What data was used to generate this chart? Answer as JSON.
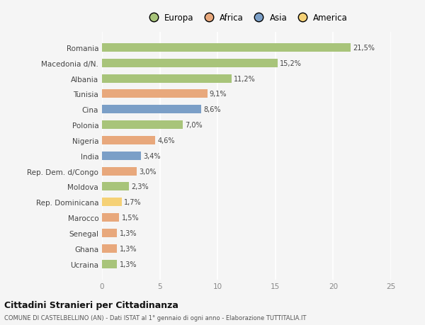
{
  "categories": [
    "Romania",
    "Macedonia d/N.",
    "Albania",
    "Tunisia",
    "Cina",
    "Polonia",
    "Nigeria",
    "India",
    "Rep. Dem. d/Congo",
    "Moldova",
    "Rep. Dominicana",
    "Marocco",
    "Senegal",
    "Ghana",
    "Ucraina"
  ],
  "values": [
    21.5,
    15.2,
    11.2,
    9.1,
    8.6,
    7.0,
    4.6,
    3.4,
    3.0,
    2.3,
    1.7,
    1.5,
    1.3,
    1.3,
    1.3
  ],
  "labels": [
    "21,5%",
    "15,2%",
    "11,2%",
    "9,1%",
    "8,6%",
    "7,0%",
    "4,6%",
    "3,4%",
    "3,0%",
    "2,3%",
    "1,7%",
    "1,5%",
    "1,3%",
    "1,3%",
    "1,3%"
  ],
  "colors": [
    "#a8c47a",
    "#a8c47a",
    "#a8c47a",
    "#e8a87c",
    "#7b9fc7",
    "#a8c47a",
    "#e8a87c",
    "#7b9fc7",
    "#e8a87c",
    "#a8c47a",
    "#f5d176",
    "#e8a87c",
    "#e8a87c",
    "#e8a87c",
    "#a8c47a"
  ],
  "continent_labels": [
    "Europa",
    "Africa",
    "Asia",
    "America"
  ],
  "continent_colors": [
    "#a8c47a",
    "#e8a87c",
    "#7b9fc7",
    "#f5d176"
  ],
  "xlim": [
    0,
    25
  ],
  "xticks": [
    0,
    5,
    10,
    15,
    20,
    25
  ],
  "title": "Cittadini Stranieri per Cittadinanza",
  "subtitle": "COMUNE DI CASTELBELLINO (AN) - Dati ISTAT al 1° gennaio di ogni anno - Elaborazione TUTTITALIA.IT",
  "bg_color": "#f5f5f5",
  "grid_color": "#ffffff",
  "bar_height": 0.55
}
